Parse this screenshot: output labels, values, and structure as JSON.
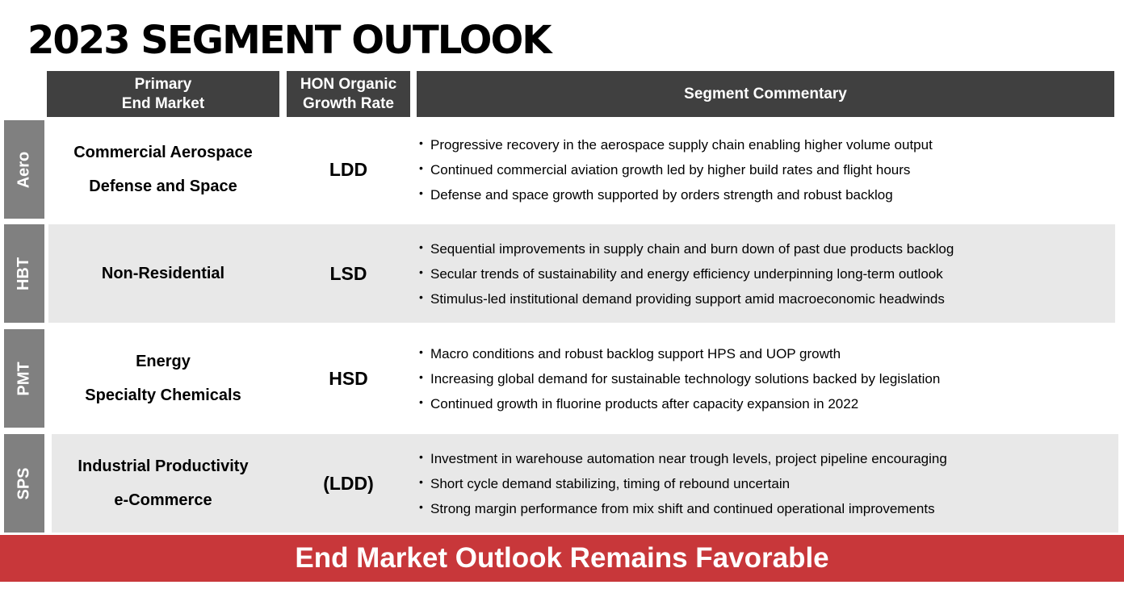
{
  "title": "2023 SEGMENT OUTLOOK",
  "headers": {
    "market": [
      "Primary",
      "End Market"
    ],
    "growth": [
      "HON Organic",
      "Growth Rate"
    ],
    "commentary": "Segment Commentary"
  },
  "colors": {
    "header_bg": "#404040",
    "segment_tag_bg": "#808080",
    "row_shade": "#e8e8e8",
    "banner_bg": "#c8373a"
  },
  "segments": [
    {
      "tag": "Aero",
      "markets": [
        "Commercial Aerospace",
        "Defense and Space"
      ],
      "growth_rate": "LDD",
      "commentary": [
        "Progressive recovery in the aerospace supply chain enabling higher volume output",
        "Continued commercial aviation growth led by higher build rates and flight hours",
        "Defense and space growth supported by orders strength and robust backlog"
      ]
    },
    {
      "tag": "HBT",
      "markets": [
        "Non-Residential"
      ],
      "growth_rate": "LSD",
      "commentary": [
        "Sequential improvements in supply chain and burn down of past due products backlog",
        "Secular trends of sustainability and energy efficiency underpinning long-term outlook",
        "Stimulus-led institutional demand providing support amid macroeconomic headwinds"
      ]
    },
    {
      "tag": "PMT",
      "markets": [
        "Energy",
        "Specialty Chemicals"
      ],
      "growth_rate": "HSD",
      "commentary": [
        "Macro conditions and robust backlog support HPS and UOP growth",
        "Increasing global demand for sustainable technology solutions backed by legislation",
        "Continued growth in fluorine products after capacity expansion in 2022"
      ]
    },
    {
      "tag": "SPS",
      "markets": [
        "Industrial Productivity",
        "e-Commerce"
      ],
      "growth_rate": "(LDD)",
      "commentary": [
        "Investment in warehouse automation near trough levels, project pipeline encouraging",
        "Short cycle demand stabilizing, timing of rebound uncertain",
        "Strong margin performance from mix shift and continued operational improvements"
      ]
    }
  ],
  "banner": "End Market Outlook Remains Favorable"
}
